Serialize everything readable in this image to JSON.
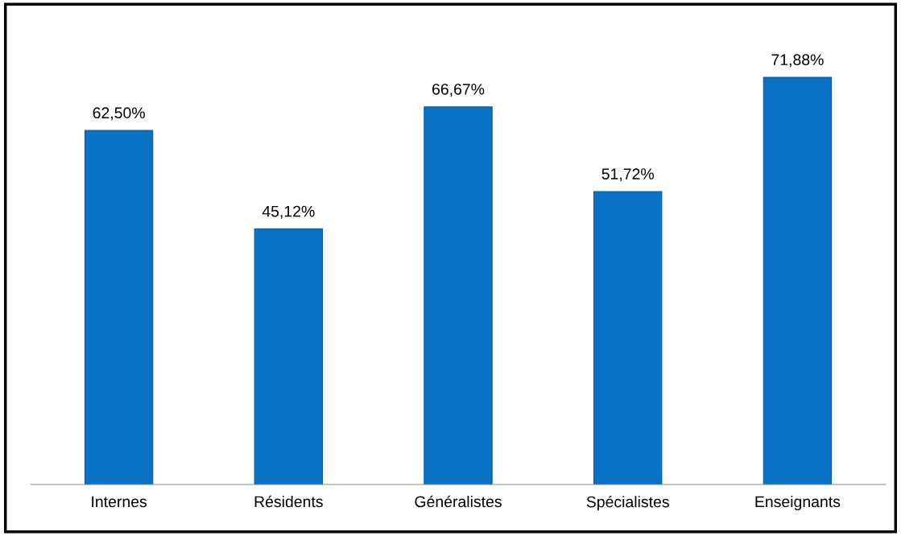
{
  "chart_data": {
    "type": "bar",
    "categories": [
      "Internes",
      "Résidents",
      "Généralistes",
      "Spécialistes",
      "Enseignants"
    ],
    "values": [
      62.5,
      45.12,
      66.67,
      51.72,
      71.88
    ],
    "value_labels": [
      "62,50%",
      "45,12%",
      "66,67%",
      "51,72%",
      "71,88%"
    ],
    "color": "#0a72c4",
    "grid": false,
    "legend": false
  }
}
